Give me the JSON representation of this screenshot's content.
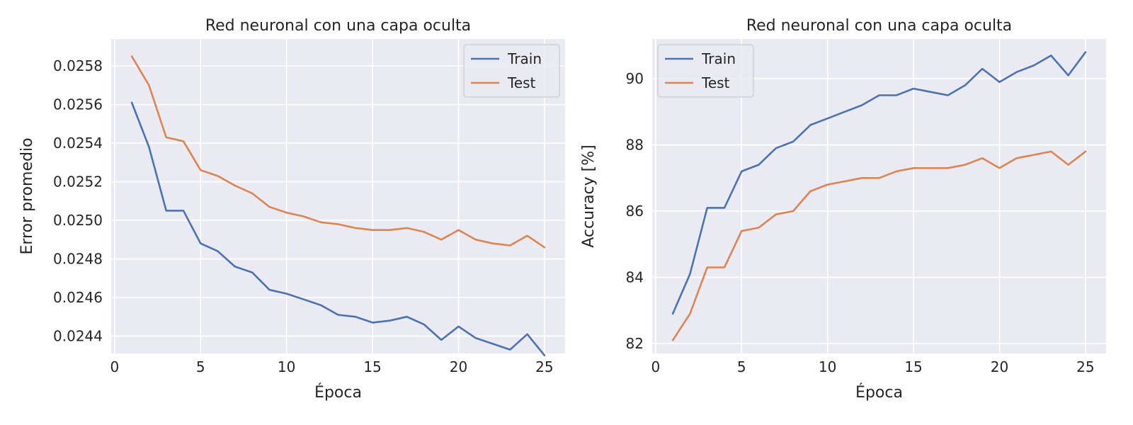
{
  "chart_data": [
    {
      "type": "line",
      "title": "Red neuronal con una capa oculta",
      "xlabel": "Época",
      "ylabel": "Error promedio",
      "xlim": [
        -0.2,
        26.2
      ],
      "ylim": [
        0.02431,
        0.02594
      ],
      "xticks": [
        0,
        5,
        10,
        15,
        20,
        25
      ],
      "yticks": [
        0.0244,
        0.0246,
        0.0248,
        0.025,
        0.0252,
        0.0254,
        0.0256,
        0.0258
      ],
      "ytick_labels": [
        "0.0244",
        "0.0246",
        "0.0248",
        "0.0250",
        "0.0252",
        "0.0254",
        "0.0256",
        "0.0258"
      ],
      "grid": true,
      "legend_position": "top-right",
      "x": [
        1,
        2,
        3,
        4,
        5,
        6,
        7,
        8,
        9,
        10,
        11,
        12,
        13,
        14,
        15,
        16,
        17,
        18,
        19,
        20,
        21,
        22,
        23,
        24,
        25
      ],
      "series": [
        {
          "name": "Train",
          "color": "#4c72b0",
          "values": [
            0.02561,
            0.02538,
            0.02505,
            0.02505,
            0.02488,
            0.02484,
            0.02476,
            0.02473,
            0.02464,
            0.02462,
            0.02459,
            0.02456,
            0.02451,
            0.0245,
            0.02447,
            0.02448,
            0.0245,
            0.02446,
            0.02438,
            0.02445,
            0.02439,
            0.02436,
            0.02433,
            0.02441,
            0.0243
          ]
        },
        {
          "name": "Test",
          "color": "#dd8452",
          "values": [
            0.02585,
            0.0257,
            0.02543,
            0.02541,
            0.02526,
            0.02523,
            0.02518,
            0.02514,
            0.02507,
            0.02504,
            0.02502,
            0.02499,
            0.02498,
            0.02496,
            0.02495,
            0.02495,
            0.02496,
            0.02494,
            0.0249,
            0.02495,
            0.0249,
            0.02488,
            0.02487,
            0.02492,
            0.02486
          ]
        }
      ]
    },
    {
      "type": "line",
      "title": "Red neuronal con una capa oculta",
      "xlabel": "Época",
      "ylabel": "Accuracy [%]",
      "xlim": [
        -0.2,
        26.2
      ],
      "ylim": [
        81.7,
        91.2
      ],
      "xticks": [
        0,
        5,
        10,
        15,
        20,
        25
      ],
      "yticks": [
        82,
        84,
        86,
        88,
        90
      ],
      "ytick_labels": [
        "82",
        "84",
        "86",
        "88",
        "90"
      ],
      "grid": true,
      "legend_position": "top-left",
      "x": [
        1,
        2,
        3,
        4,
        5,
        6,
        7,
        8,
        9,
        10,
        11,
        12,
        13,
        14,
        15,
        16,
        17,
        18,
        19,
        20,
        21,
        22,
        23,
        24,
        25
      ],
      "series": [
        {
          "name": "Train",
          "color": "#4c72b0",
          "values": [
            82.9,
            84.1,
            86.1,
            86.1,
            87.2,
            87.4,
            87.9,
            88.1,
            88.6,
            88.8,
            89.0,
            89.2,
            89.5,
            89.5,
            89.7,
            89.6,
            89.5,
            89.8,
            90.3,
            89.9,
            90.2,
            90.4,
            90.7,
            90.1,
            90.8
          ]
        },
        {
          "name": "Test",
          "color": "#dd8452",
          "values": [
            82.1,
            82.9,
            84.3,
            84.3,
            85.4,
            85.5,
            85.9,
            86.0,
            86.6,
            86.8,
            86.9,
            87.0,
            87.0,
            87.2,
            87.3,
            87.3,
            87.3,
            87.4,
            87.6,
            87.3,
            87.6,
            87.7,
            87.8,
            87.4,
            87.8
          ]
        }
      ]
    }
  ]
}
